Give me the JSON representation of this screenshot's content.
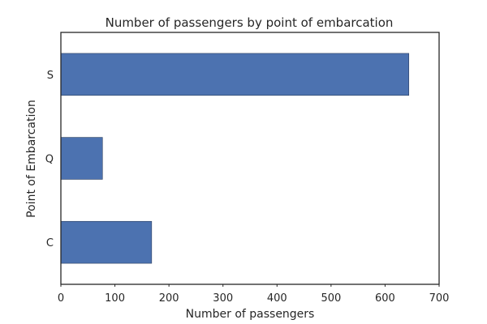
{
  "chart_data": {
    "type": "bar",
    "orientation": "horizontal",
    "title": "Number of passengers by point of embarcation",
    "xlabel": "Number of passengers",
    "ylabel": "Point of Embarcation",
    "categories": [
      "C",
      "Q",
      "S"
    ],
    "values": [
      168,
      77,
      644
    ],
    "xlim": [
      0,
      700
    ],
    "xticks": [
      0,
      100,
      200,
      300,
      400,
      500,
      600,
      700
    ],
    "grid": false,
    "bar_color": "#4c72b0",
    "legend": null
  }
}
